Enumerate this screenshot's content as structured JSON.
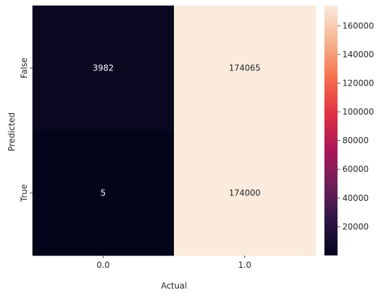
{
  "chart_data": {
    "type": "heatmap",
    "title": "",
    "xlabel": "Actual",
    "ylabel": "Predicted",
    "x_categories": [
      "0.0",
      "1.0"
    ],
    "y_categories": [
      "False",
      "True"
    ],
    "values": [
      [
        3982,
        174065
      ],
      [
        5,
        174000
      ]
    ],
    "value_labels": [
      [
        "3982",
        "174065"
      ],
      [
        "5",
        "174000"
      ]
    ],
    "colorbar": {
      "min": 5,
      "max": 174065,
      "ticks": [
        20000,
        40000,
        60000,
        80000,
        100000,
        120000,
        140000,
        160000
      ],
      "tick_labels": [
        "20000",
        "40000",
        "60000",
        "80000",
        "100000",
        "120000",
        "140000",
        "160000"
      ],
      "colormap": "rocket",
      "stops": [
        "#03051a",
        "#2f1648",
        "#701f57",
        "#ad1759",
        "#e13342",
        "#f6714e",
        "#f6b48f",
        "#faebdd"
      ]
    }
  }
}
